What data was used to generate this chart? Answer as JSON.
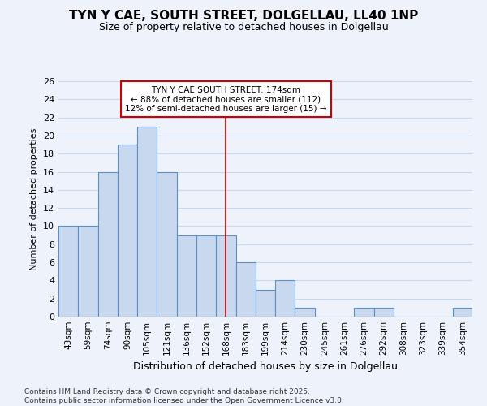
{
  "title": "TYN Y CAE, SOUTH STREET, DOLGELLAU, LL40 1NP",
  "subtitle": "Size of property relative to detached houses in Dolgellau",
  "xlabel": "Distribution of detached houses by size in Dolgellau",
  "ylabel": "Number of detached properties",
  "categories": [
    "43sqm",
    "59sqm",
    "74sqm",
    "90sqm",
    "105sqm",
    "121sqm",
    "136sqm",
    "152sqm",
    "168sqm",
    "183sqm",
    "199sqm",
    "214sqm",
    "230sqm",
    "245sqm",
    "261sqm",
    "276sqm",
    "292sqm",
    "308sqm",
    "323sqm",
    "339sqm",
    "354sqm"
  ],
  "values": [
    10,
    10,
    16,
    19,
    21,
    16,
    9,
    9,
    9,
    6,
    3,
    4,
    1,
    0,
    0,
    1,
    1,
    0,
    0,
    0,
    1
  ],
  "bar_color": "#c8d9ef",
  "bar_edge_color": "#5b8fc9",
  "grid_color": "#c8d9ef",
  "background_color": "#eef3fb",
  "annotation_line1": "TYN Y CAE SOUTH STREET: 174sqm",
  "annotation_line2": "← 88% of detached houses are smaller (112)",
  "annotation_line3": "12% of semi-detached houses are larger (15) →",
  "annotation_box_color": "#ffffff",
  "annotation_box_edge": "#cc0000",
  "vline_x_index": 8,
  "vline_color": "#cc0000",
  "ylim": [
    0,
    26
  ],
  "yticks": [
    0,
    2,
    4,
    6,
    8,
    10,
    12,
    14,
    16,
    18,
    20,
    22,
    24,
    26
  ],
  "footer_line1": "Contains HM Land Registry data © Crown copyright and database right 2025.",
  "footer_line2": "Contains public sector information licensed under the Open Government Licence v3.0."
}
